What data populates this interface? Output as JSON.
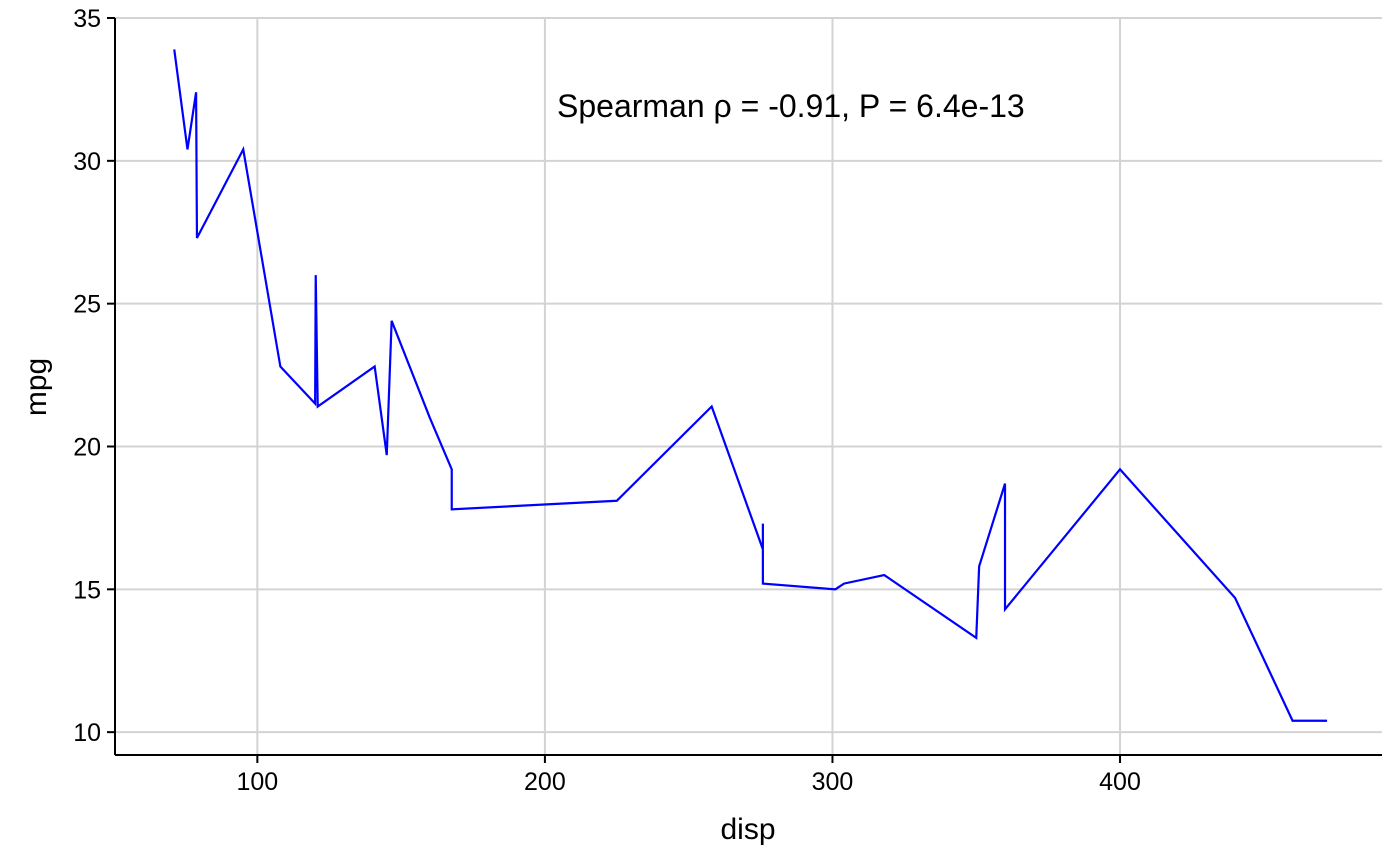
{
  "chart_data": {
    "type": "line",
    "xlabel": "disp",
    "ylabel": "mpg",
    "xlim": [
      50.5,
      491.1
    ],
    "ylim": [
      9.2,
      35.0
    ],
    "x_ticks": [
      100,
      200,
      300,
      400
    ],
    "y_ticks": [
      10,
      15,
      20,
      25,
      30,
      35
    ],
    "grid": true,
    "annotation": "Spearman ρ = -0.91, P = 6.4e-13",
    "line_color": "#0000FF",
    "series": [
      {
        "x": [
          71.1,
          75.7,
          78.7,
          79.0,
          95.1,
          108.0,
          120.1,
          120.3,
          121.0,
          140.8,
          145.0,
          146.7,
          160.0,
          167.6,
          167.6,
          225.0,
          258.0,
          275.8,
          275.8,
          275.8,
          301.0,
          304.0,
          318.0,
          350.0,
          351.0,
          360.0,
          360.0,
          400.0,
          440.0,
          460.0,
          472.0
        ],
        "y": [
          33.9,
          30.4,
          32.4,
          27.3,
          30.4,
          22.8,
          21.5,
          26.0,
          21.4,
          22.8,
          19.7,
          24.4,
          21.0,
          19.2,
          17.8,
          18.1,
          21.4,
          16.4,
          17.3,
          15.2,
          15.0,
          15.2,
          15.5,
          13.3,
          15.8,
          18.7,
          14.3,
          19.2,
          14.7,
          10.4,
          10.4
        ]
      }
    ]
  }
}
